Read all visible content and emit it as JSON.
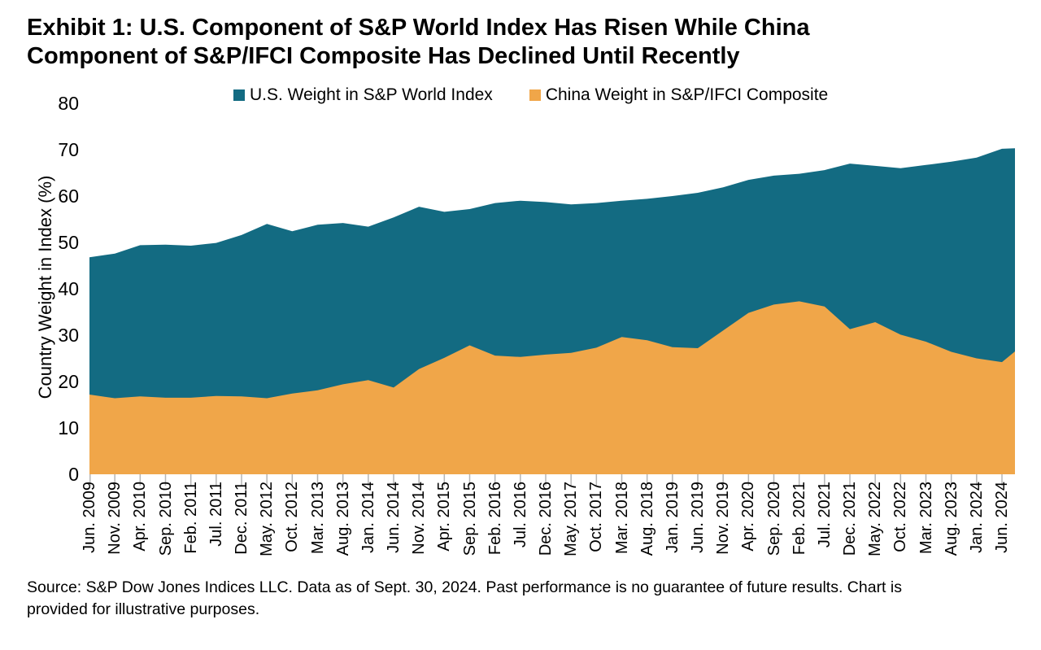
{
  "title": {
    "line1": "Exhibit 1: U.S. Component of S&P World Index Has Risen While China",
    "line2": "Component of S&P/IFCI Composite Has Declined Until Recently"
  },
  "y_axis": {
    "title": "Country Weight in Index (%)",
    "ticks": [
      0,
      10,
      20,
      30,
      40,
      50,
      60,
      70,
      80
    ]
  },
  "source": {
    "line1": "Source: S&P Dow Jones Indices LLC. Data as of Sept. 30, 2024. Past performance is no guarantee of future results. Chart is",
    "line2": "provided for illustrative purposes."
  },
  "chart_data": {
    "type": "area",
    "title": "Exhibit 1: U.S. Component of S&P World Index Has Risen While China Component of S&P/IFCI Composite Has Declined Until Recently",
    "xlabel": "",
    "ylabel": "Country Weight in Index (%)",
    "ylim": [
      0,
      80
    ],
    "grid": false,
    "legend_position": "top",
    "x": [
      "Jun. 2009",
      "Nov. 2009",
      "Apr. 2010",
      "Sep. 2010",
      "Feb. 2011",
      "Jul. 2011",
      "Dec. 2011",
      "May. 2012",
      "Oct. 2012",
      "Mar. 2013",
      "Aug. 2013",
      "Jan. 2014",
      "Jun. 2014",
      "Nov. 2014",
      "Apr. 2015",
      "Sep. 2015",
      "Feb. 2016",
      "Jul. 2016",
      "Dec. 2016",
      "May. 2017",
      "Oct. 2017",
      "Mar. 2018",
      "Aug. 2018",
      "Jan. 2019",
      "Jun. 2019",
      "Nov. 2019",
      "Apr. 2020",
      "Sep. 2020",
      "Feb. 2021",
      "Jul. 2021",
      "Dec. 2021",
      "May. 2022",
      "Oct. 2022",
      "Mar. 2023",
      "Aug. 2023",
      "Jan. 2024",
      "Jun. 2024"
    ],
    "note": "Series values have one more entry than x tick labels; the final value sits at the right edge of the plot (data through Sep. 30, 2024, past the last labeled tick). Overlapping (not stacked) areas; China drawn in front of U.S.",
    "series": [
      {
        "name": "U.S. Weight in S&P World Index",
        "color": "#136b82",
        "values": [
          46.8,
          47.6,
          49.4,
          49.5,
          49.3,
          49.9,
          51.6,
          54.0,
          52.4,
          53.8,
          54.2,
          53.4,
          55.4,
          57.7,
          56.6,
          57.2,
          58.5,
          59.0,
          58.7,
          58.2,
          58.5,
          59.0,
          59.4,
          60.0,
          60.7,
          61.9,
          63.5,
          64.4,
          64.8,
          65.6,
          67.0,
          66.5,
          66.0,
          66.7,
          67.4,
          68.3,
          70.2,
          70.3
        ]
      },
      {
        "name": "China Weight in S&P/IFCI Composite",
        "color": "#f0a649",
        "values": [
          17.2,
          16.4,
          16.8,
          16.5,
          16.5,
          16.9,
          16.8,
          16.4,
          17.4,
          18.1,
          19.4,
          20.3,
          18.7,
          22.7,
          25.1,
          27.8,
          25.6,
          25.3,
          25.8,
          26.2,
          27.3,
          29.6,
          28.9,
          27.4,
          27.2,
          31.0,
          34.8,
          36.6,
          37.3,
          36.2,
          31.3,
          32.8,
          30.1,
          28.6,
          26.4,
          25.0,
          24.2,
          26.5
        ]
      }
    ]
  }
}
